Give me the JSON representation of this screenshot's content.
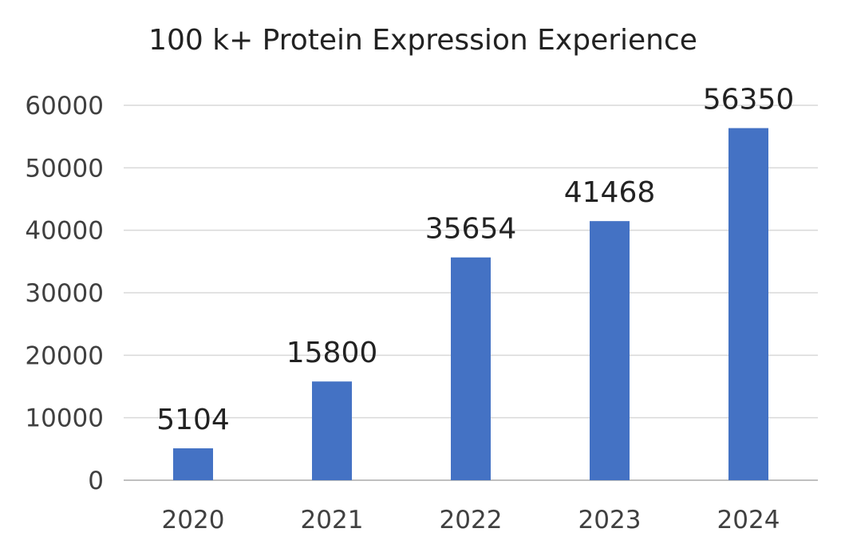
{
  "chart_data": {
    "type": "bar",
    "title": "100 k+ Protein Expression Experience",
    "categories": [
      "2020",
      "2021",
      "2022",
      "2023",
      "2024"
    ],
    "values": [
      5104,
      15800,
      35654,
      41468,
      56350
    ],
    "data_labels": [
      "5104",
      "15800",
      "35654",
      "41468",
      "56350"
    ],
    "xlabel": "",
    "ylabel": "",
    "ylim": [
      0,
      60000
    ],
    "yticks": [
      "0",
      "10000",
      "20000",
      "30000",
      "40000",
      "50000",
      "60000"
    ],
    "grid": true,
    "legend": "none",
    "colors": {
      "bar": "#4472C4",
      "grid": "#D9D9D9",
      "axis": "#BFBFBF"
    }
  }
}
